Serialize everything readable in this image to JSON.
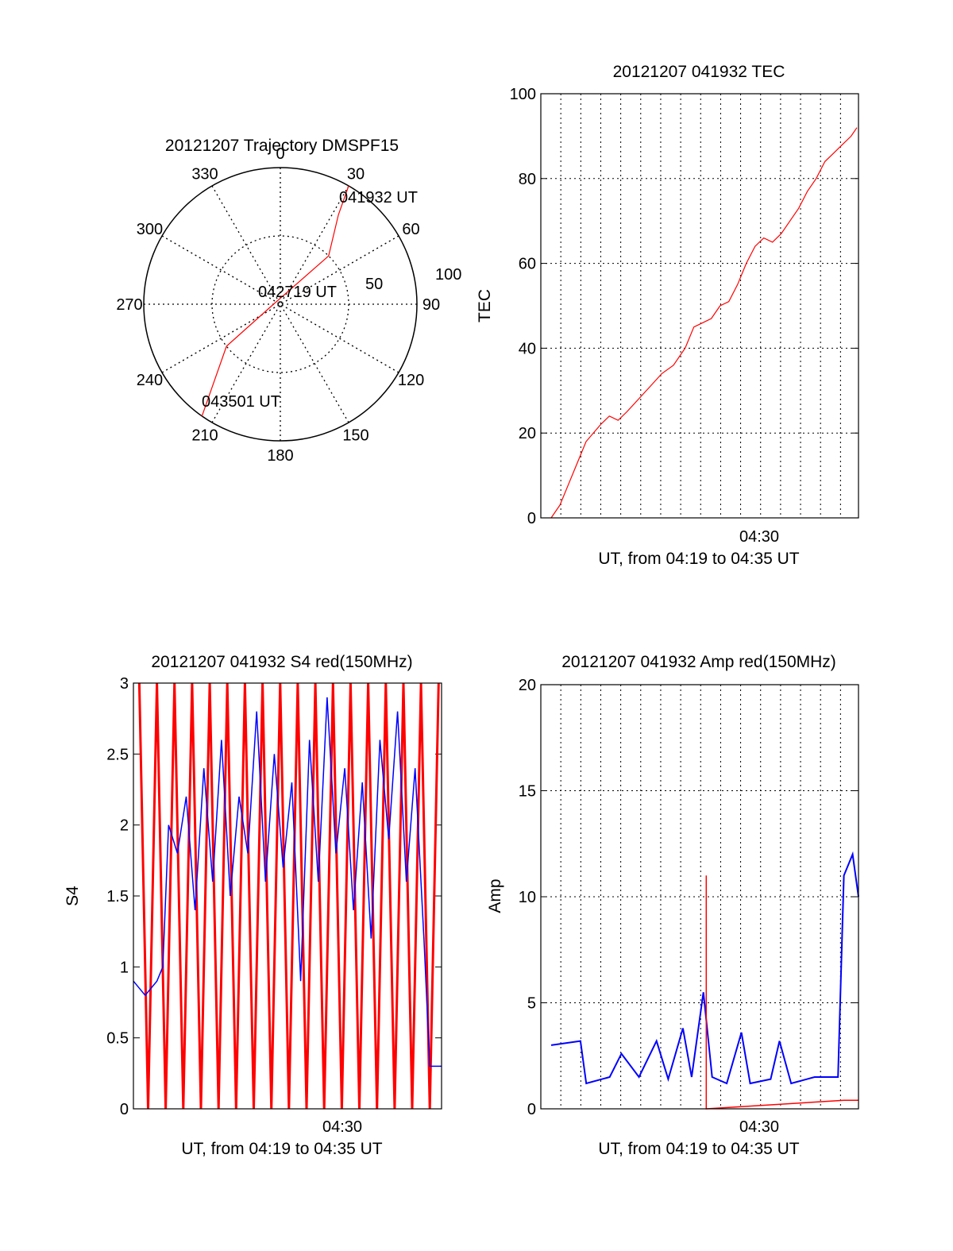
{
  "chart_data": [
    {
      "type": "polar",
      "title": "20121207 Trajectory DMSPF15",
      "angle_labels": [
        "0",
        "30",
        "60",
        "90",
        "120",
        "150",
        "180",
        "210",
        "240",
        "270",
        "300",
        "330"
      ],
      "radial_labels": [
        "50",
        "100"
      ],
      "annotations": [
        "041932 UT",
        "042719 UT",
        "043501 UT"
      ],
      "series": [
        {
          "color": "#ff0000",
          "points": [
            {
              "az": 30,
              "zen": 100
            },
            {
              "az": 33,
              "zen": 78
            },
            {
              "az": 45,
              "zen": 50
            },
            {
              "az": 270,
              "zen": 5
            },
            {
              "az": 232,
              "zen": 50
            },
            {
              "az": 215,
              "zen": 100
            }
          ]
        }
      ]
    },
    {
      "type": "line",
      "title": "20121207 041932 TEC",
      "xlabel": "UT, from 04:19 to 04:35 UT",
      "ylabel": "TEC",
      "ylim": [
        0,
        100
      ],
      "yticks": [
        "0",
        "20",
        "40",
        "60",
        "80",
        "100"
      ],
      "xtick_label": "04:30",
      "series": [
        {
          "color": "#ff0000",
          "points": [
            [
              0.0,
              0
            ],
            [
              0.3,
              3
            ],
            [
              0.6,
              8
            ],
            [
              0.9,
              13
            ],
            [
              1.2,
              18
            ],
            [
              1.7,
              22
            ],
            [
              2.0,
              24
            ],
            [
              2.3,
              23
            ],
            [
              2.6,
              25
            ],
            [
              3.0,
              28
            ],
            [
              3.4,
              31
            ],
            [
              3.8,
              34
            ],
            [
              4.2,
              36
            ],
            [
              4.6,
              40
            ],
            [
              4.9,
              45
            ],
            [
              5.2,
              46
            ],
            [
              5.5,
              47
            ],
            [
              5.8,
              50
            ],
            [
              6.1,
              51
            ],
            [
              6.4,
              55
            ],
            [
              6.7,
              60
            ],
            [
              7.0,
              64
            ],
            [
              7.3,
              66
            ],
            [
              7.6,
              65
            ],
            [
              7.9,
              67
            ],
            [
              8.2,
              70
            ],
            [
              8.5,
              73
            ],
            [
              8.8,
              77
            ],
            [
              9.1,
              80
            ],
            [
              9.4,
              84
            ],
            [
              9.7,
              86
            ],
            [
              10.0,
              88
            ],
            [
              10.3,
              90
            ],
            [
              10.5,
              92
            ]
          ]
        }
      ]
    },
    {
      "type": "line",
      "title": "20121207 041932 S4 red(150MHz)",
      "xlabel": "UT, from 04:19 to 04:35 UT",
      "ylabel": "S4",
      "ylim": [
        0,
        3
      ],
      "yticks": [
        "0",
        "0.5",
        "1",
        "1.5",
        "2",
        "2.5",
        "3"
      ],
      "xtick_label": "04:30",
      "series": [
        {
          "color": "#ff0000",
          "points": [
            [
              0.2,
              3
            ],
            [
              0.5,
              0
            ],
            [
              0.8,
              3
            ],
            [
              1.1,
              0
            ],
            [
              1.4,
              3
            ],
            [
              1.7,
              0
            ],
            [
              2.0,
              3
            ],
            [
              2.3,
              0
            ],
            [
              2.6,
              3
            ],
            [
              2.9,
              0
            ],
            [
              3.2,
              3
            ],
            [
              3.5,
              0
            ],
            [
              3.8,
              3
            ],
            [
              4.1,
              0
            ],
            [
              4.4,
              3
            ],
            [
              4.7,
              0
            ],
            [
              5.0,
              3
            ],
            [
              5.3,
              0
            ],
            [
              5.6,
              3
            ],
            [
              5.9,
              0
            ],
            [
              6.2,
              3
            ],
            [
              6.5,
              0
            ],
            [
              6.8,
              3
            ],
            [
              7.1,
              0
            ],
            [
              7.4,
              3
            ],
            [
              7.7,
              0
            ],
            [
              8.0,
              3
            ],
            [
              8.3,
              0
            ],
            [
              8.6,
              3
            ],
            [
              8.9,
              0
            ],
            [
              9.2,
              3
            ],
            [
              9.5,
              0
            ],
            [
              9.8,
              3
            ],
            [
              10.1,
              0
            ],
            [
              10.4,
              3
            ]
          ]
        },
        {
          "color": "#0000ff",
          "points": [
            [
              0.0,
              0.9
            ],
            [
              0.4,
              0.8
            ],
            [
              0.8,
              0.9
            ],
            [
              1.0,
              1.0
            ],
            [
              1.2,
              2.0
            ],
            [
              1.5,
              1.8
            ],
            [
              1.8,
              2.2
            ],
            [
              2.1,
              1.4
            ],
            [
              2.4,
              2.4
            ],
            [
              2.7,
              1.6
            ],
            [
              3.0,
              2.6
            ],
            [
              3.3,
              1.5
            ],
            [
              3.6,
              2.2
            ],
            [
              3.9,
              1.8
            ],
            [
              4.2,
              2.8
            ],
            [
              4.5,
              1.6
            ],
            [
              4.8,
              2.5
            ],
            [
              5.1,
              1.7
            ],
            [
              5.4,
              2.3
            ],
            [
              5.7,
              0.9
            ],
            [
              6.0,
              2.6
            ],
            [
              6.3,
              1.6
            ],
            [
              6.6,
              2.9
            ],
            [
              6.9,
              1.8
            ],
            [
              7.2,
              2.4
            ],
            [
              7.5,
              1.4
            ],
            [
              7.8,
              2.3
            ],
            [
              8.1,
              1.2
            ],
            [
              8.4,
              2.6
            ],
            [
              8.7,
              1.9
            ],
            [
              9.0,
              2.8
            ],
            [
              9.3,
              1.6
            ],
            [
              9.6,
              2.4
            ],
            [
              9.9,
              1.2
            ],
            [
              10.1,
              0.3
            ],
            [
              10.5,
              0.3
            ]
          ]
        }
      ]
    },
    {
      "type": "line",
      "title": "20121207 041932 Amp red(150MHz)",
      "xlabel": "UT, from 04:19 to 04:35 UT",
      "ylabel": "Amp",
      "ylim": [
        0,
        20
      ],
      "yticks": [
        "0",
        "5",
        "10",
        "15",
        "20"
      ],
      "xtick_label": "04:30",
      "series": [
        {
          "color": "#0000ff",
          "points": [
            [
              0.0,
              3.0
            ],
            [
              1.0,
              3.2
            ],
            [
              1.2,
              1.2
            ],
            [
              2.0,
              1.5
            ],
            [
              2.4,
              2.6
            ],
            [
              3.0,
              1.5
            ],
            [
              3.6,
              3.2
            ],
            [
              4.0,
              1.4
            ],
            [
              4.5,
              3.8
            ],
            [
              4.8,
              1.5
            ],
            [
              5.2,
              5.5
            ],
            [
              5.5,
              1.5
            ],
            [
              6.0,
              1.2
            ],
            [
              6.5,
              3.6
            ],
            [
              6.8,
              1.2
            ],
            [
              7.5,
              1.4
            ],
            [
              7.8,
              3.2
            ],
            [
              8.2,
              1.2
            ],
            [
              9.0,
              1.5
            ],
            [
              9.8,
              1.5
            ],
            [
              10.0,
              11.0
            ],
            [
              10.3,
              12.0
            ],
            [
              10.5,
              10.0
            ]
          ]
        },
        {
          "color": "#ff0000",
          "points": [
            [
              5.3,
              11.0
            ],
            [
              5.3,
              0.0
            ],
            [
              10.0,
              0.4
            ],
            [
              10.5,
              0.4
            ]
          ]
        }
      ]
    }
  ]
}
